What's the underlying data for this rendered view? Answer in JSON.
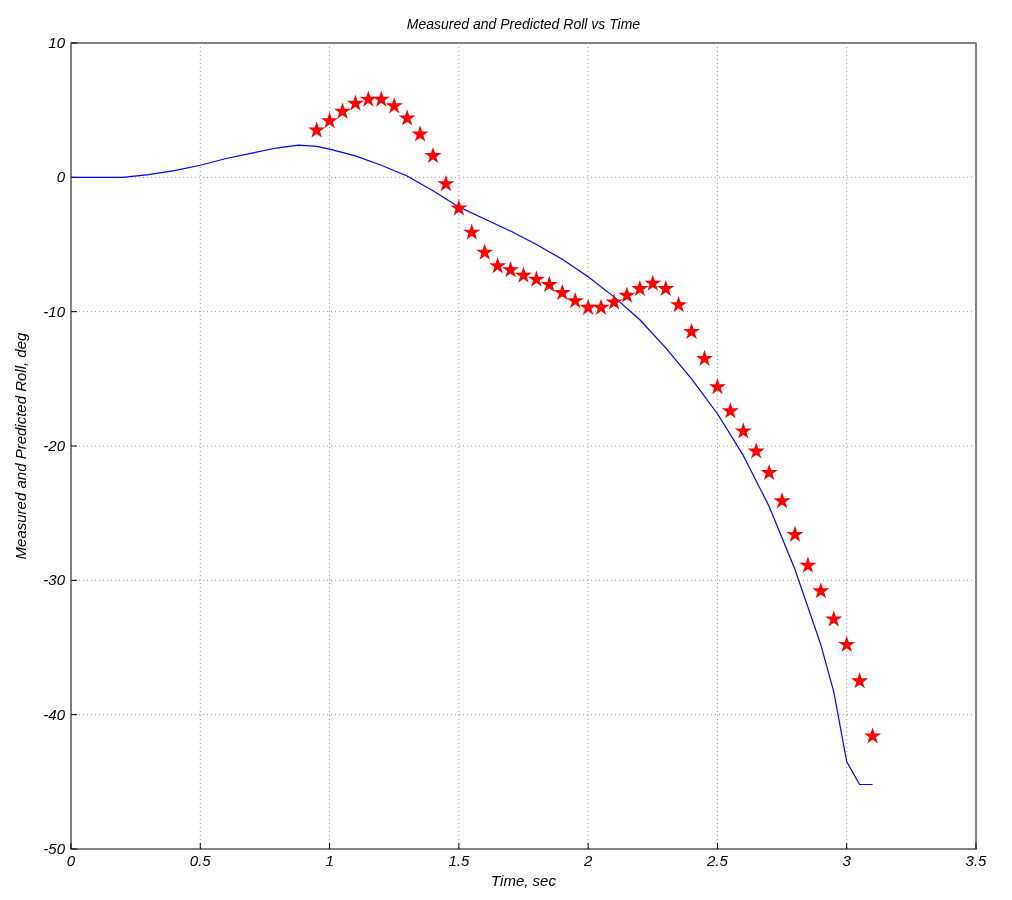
{
  "chart_data": {
    "type": "line",
    "title": "Measured and Predicted Roll vs Time",
    "xlabel": "Time, sec",
    "ylabel": "Measured and Predicted Roll, deg",
    "xlim": [
      0,
      3.5
    ],
    "xticks": [
      0,
      0.5,
      1,
      1.5,
      2,
      2.5,
      3,
      3.5
    ],
    "ylim": [
      -50,
      10
    ],
    "yticks": [
      -50,
      -40,
      -30,
      -20,
      -10,
      0,
      10
    ],
    "grid": true,
    "series": [
      {
        "type": "line",
        "color": "#0000ff",
        "x": [
          0,
          0.2,
          0.3,
          0.4,
          0.5,
          0.6,
          0.7,
          0.8,
          0.88,
          0.95,
          1.0,
          1.1,
          1.2,
          1.3,
          1.4,
          1.5,
          1.6,
          1.7,
          1.8,
          1.9,
          2.0,
          2.1,
          2.2,
          2.3,
          2.4,
          2.5,
          2.6,
          2.7,
          2.8,
          2.9,
          2.95,
          3.0,
          3.05,
          3.1
        ],
        "values": [
          0,
          0,
          0.2,
          0.5,
          0.9,
          1.4,
          1.8,
          2.2,
          2.4,
          2.3,
          2.1,
          1.6,
          0.9,
          0.1,
          -1.0,
          -2.2,
          -3.1,
          -4.0,
          -5.0,
          -6.1,
          -7.4,
          -8.9,
          -10.6,
          -12.7,
          -15.0,
          -17.6,
          -20.7,
          -24.5,
          -29.2,
          -34.8,
          -38.3,
          -43.5,
          -45.2,
          -45.2
        ]
      },
      {
        "type": "scatter",
        "color": "#ff0000",
        "marker": "star",
        "x": [
          0.95,
          1.0,
          1.05,
          1.1,
          1.15,
          1.2,
          1.25,
          1.3,
          1.35,
          1.4,
          1.45,
          1.5,
          1.55,
          1.6,
          1.65,
          1.7,
          1.75,
          1.8,
          1.85,
          1.9,
          1.95,
          2.0,
          2.05,
          2.1,
          2.15,
          2.2,
          2.25,
          2.3,
          2.35,
          2.4,
          2.45,
          2.5,
          2.55,
          2.6,
          2.65,
          2.7,
          2.75,
          2.8,
          2.85,
          2.9,
          2.95,
          3.0,
          3.05,
          3.1
        ],
        "values": [
          3.5,
          4.2,
          4.9,
          5.5,
          5.8,
          5.8,
          5.3,
          4.4,
          3.2,
          1.6,
          -0.5,
          -2.3,
          -4.1,
          -5.6,
          -6.6,
          -6.9,
          -7.3,
          -7.6,
          -8.0,
          -8.6,
          -9.2,
          -9.7,
          -9.7,
          -9.3,
          -8.8,
          -8.3,
          -7.9,
          -8.3,
          -9.5,
          -11.5,
          -13.5,
          -15.6,
          -17.4,
          -18.9,
          -20.4,
          -22.0,
          -24.1,
          -26.6,
          -28.9,
          -30.8,
          -32.9,
          -34.8,
          -37.5,
          -41.6
        ]
      }
    ]
  }
}
